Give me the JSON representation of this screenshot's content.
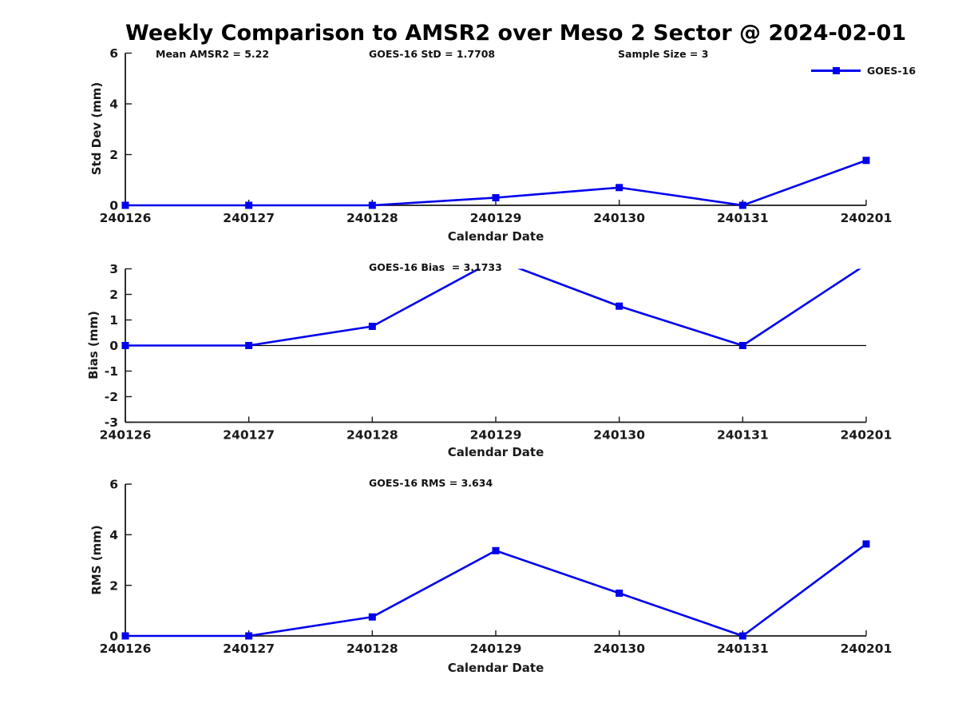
{
  "title": "Weekly Comparison to AMSR2 over Meso 2 Sector @ 2024-02-01",
  "legend": {
    "label": "GOES-16",
    "marker": "square-icon"
  },
  "annotations": {
    "mean_amsr2": "Mean AMSR2 = 5.22",
    "goes16_std": "GOES-16 StD = 1.7708",
    "sample_size": "Sample Size = 3",
    "goes16_bias": "GOES-16 Bias  = 3.1733",
    "goes16_rms": "GOES-16 RMS = 3.634"
  },
  "colors": {
    "series": "#0000EE",
    "axis": "#1a1a1a",
    "zero_line": "#000000",
    "text": "#1a1a1a"
  },
  "chart_data": [
    {
      "type": "line",
      "title": "",
      "xlabel": "Calendar Date",
      "ylabel": "Std Dev (mm)",
      "categories": [
        "240126",
        "240127",
        "240128",
        "240129",
        "240130",
        "240131",
        "240201"
      ],
      "series": [
        {
          "name": "GOES-16",
          "marker": "square",
          "values": [
            0,
            0,
            0,
            0.3,
            0.7,
            0,
            1.7708
          ]
        }
      ],
      "ylim": [
        0,
        6
      ],
      "yticks": [
        0,
        2,
        4,
        6
      ],
      "grid": false,
      "zero_line": false,
      "legend_position": "top-right"
    },
    {
      "type": "line",
      "title": "",
      "xlabel": "Calendar Date",
      "ylabel": "Bias (mm)",
      "categories": [
        "240126",
        "240127",
        "240128",
        "240129",
        "240130",
        "240131",
        "240201"
      ],
      "series": [
        {
          "name": "GOES-16",
          "marker": "square",
          "values": [
            0,
            0,
            0.75,
            3.36,
            1.54,
            0,
            3.1733
          ]
        }
      ],
      "ylim": [
        -3,
        3
      ],
      "yticks": [
        -3,
        -2,
        -1,
        0,
        1,
        2,
        3
      ],
      "grid": false,
      "zero_line": true,
      "legend_position": "none"
    },
    {
      "type": "line",
      "title": "",
      "xlabel": "Calendar Date",
      "ylabel": "RMS (mm)",
      "categories": [
        "240126",
        "240127",
        "240128",
        "240129",
        "240130",
        "240131",
        "240201"
      ],
      "series": [
        {
          "name": "GOES-16",
          "marker": "square",
          "values": [
            0,
            0,
            0.75,
            3.37,
            1.69,
            0,
            3.634
          ]
        }
      ],
      "ylim": [
        0,
        6
      ],
      "yticks": [
        0,
        2,
        4,
        6
      ],
      "grid": false,
      "zero_line": false,
      "legend_position": "none"
    }
  ]
}
